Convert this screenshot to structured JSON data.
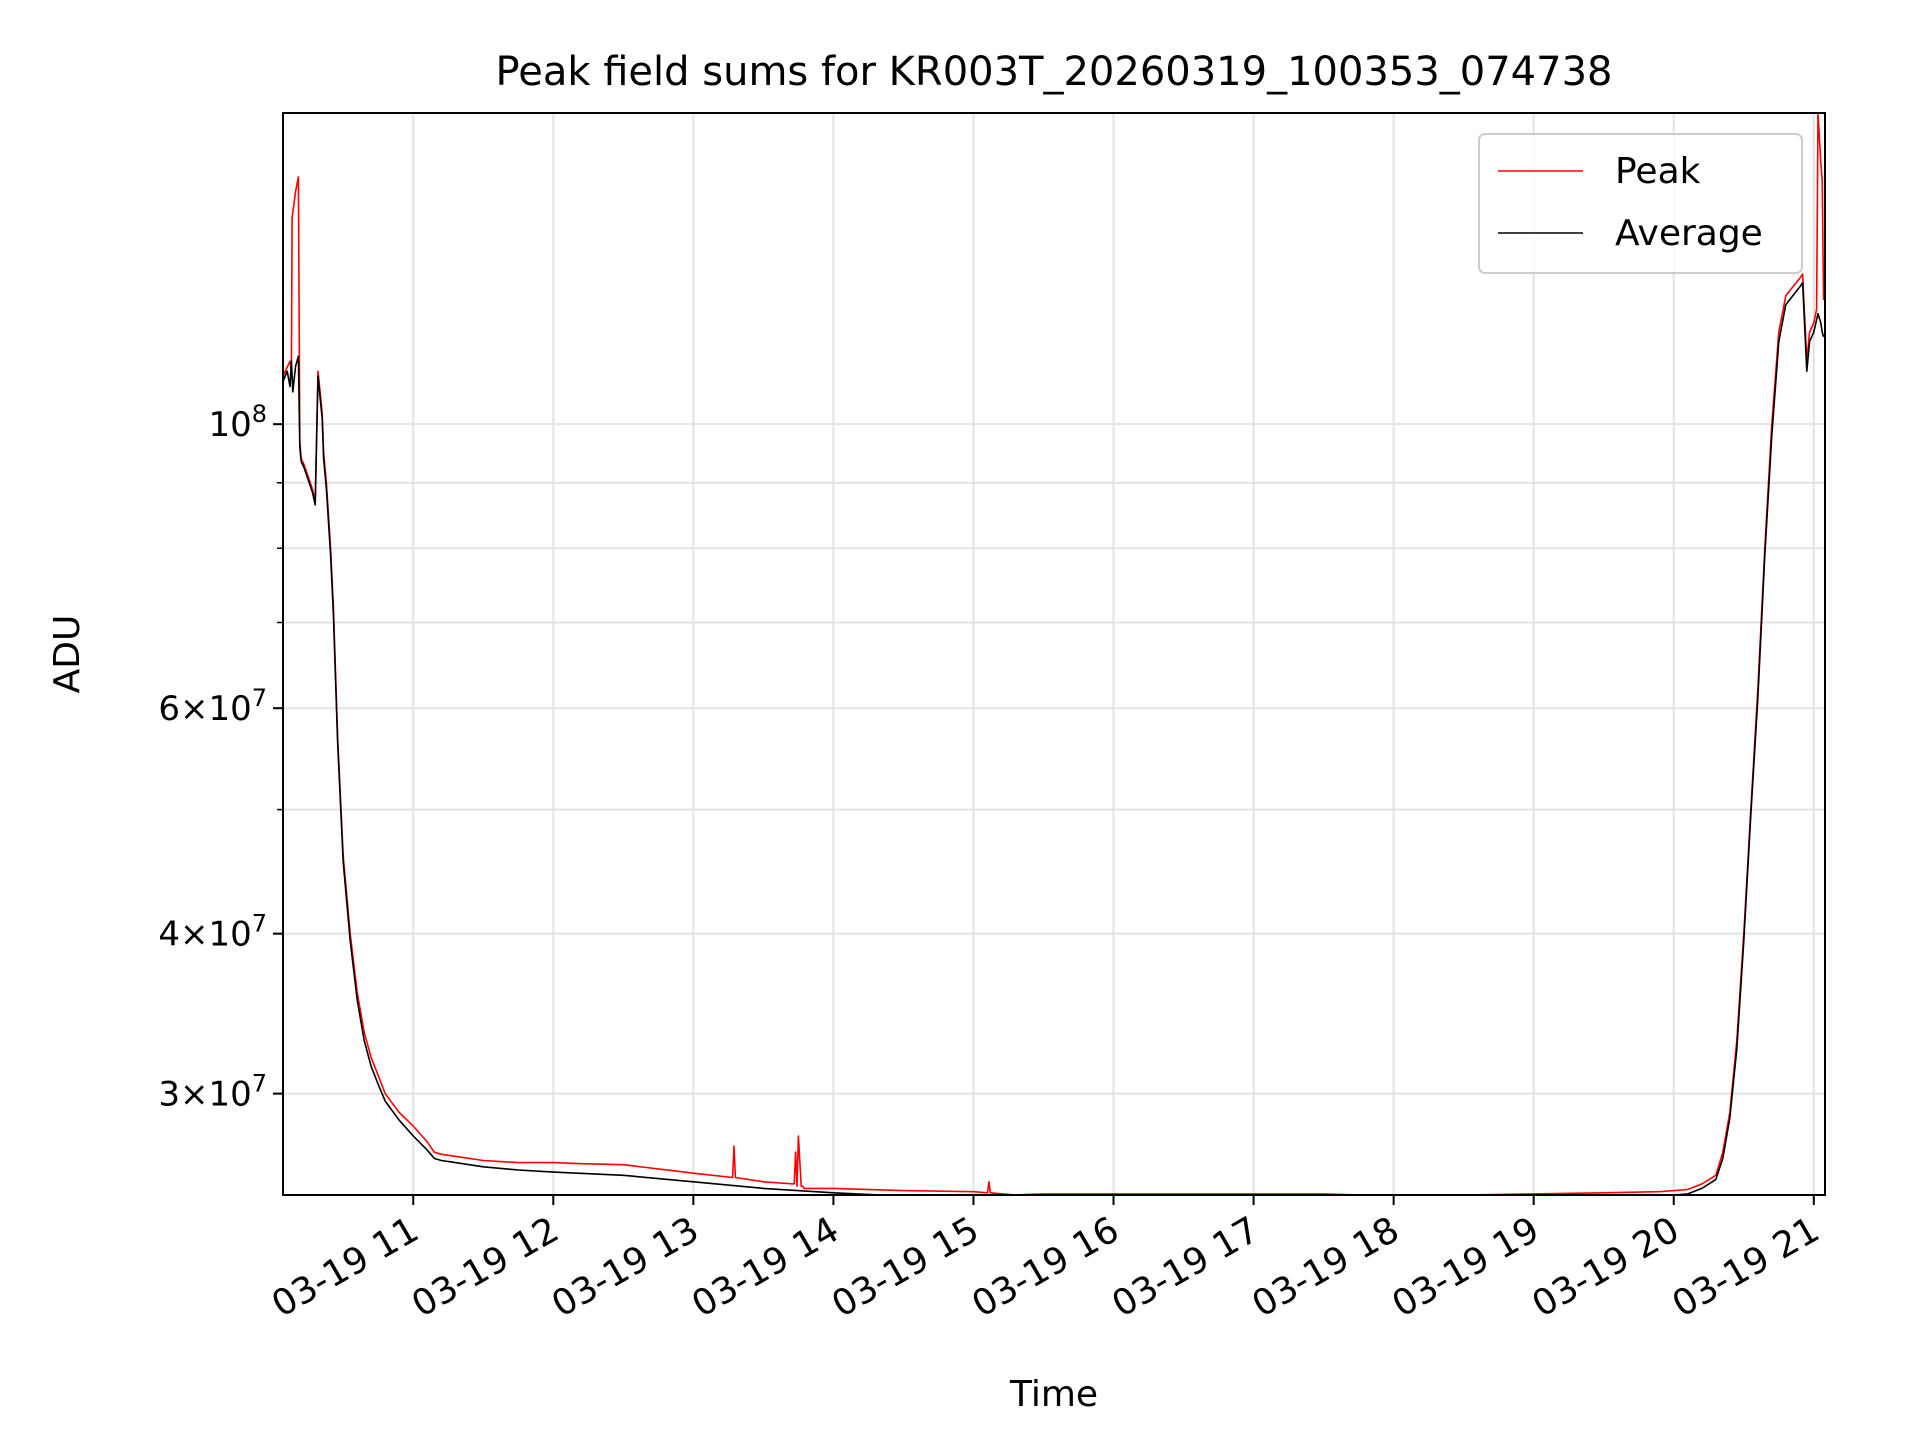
{
  "chart_data": {
    "type": "line",
    "title": "Peak field sums for KR003T_20260319_100353_074738",
    "xlabel": "Time",
    "ylabel": "ADU",
    "x_axis": "time (hours on 2026-03-19)",
    "xlim": [
      10.07,
      21.08
    ],
    "y_scale": "log",
    "ylim": [
      25000000.0,
      175000000.0
    ],
    "grid": true,
    "legend_position": "upper right",
    "x_ticks": [
      {
        "value": 11,
        "label": "03-19 11"
      },
      {
        "value": 12,
        "label": "03-19 12"
      },
      {
        "value": 13,
        "label": "03-19 13"
      },
      {
        "value": 14,
        "label": "03-19 14"
      },
      {
        "value": 15,
        "label": "03-19 15"
      },
      {
        "value": 16,
        "label": "03-19 16"
      },
      {
        "value": 17,
        "label": "03-19 17"
      },
      {
        "value": 18,
        "label": "03-19 18"
      },
      {
        "value": 19,
        "label": "03-19 19"
      },
      {
        "value": 20,
        "label": "03-19 20"
      },
      {
        "value": 21,
        "label": "03-19 21"
      }
    ],
    "y_ticks": [
      {
        "value": 30000000,
        "mantissa": "3",
        "exp": "7"
      },
      {
        "value": 40000000,
        "mantissa": "4",
        "exp": "7"
      },
      {
        "value": 60000000,
        "mantissa": "6",
        "exp": "7"
      },
      {
        "value": 100000000,
        "mantissa": "",
        "exp": "8"
      }
    ],
    "y_minor_ticks": [
      50000000,
      70000000,
      80000000,
      90000000
    ],
    "series": [
      {
        "name": "Peak",
        "color": "#ff0000",
        "x": [
          10.07,
          10.12,
          10.13,
          10.135,
          10.16,
          10.18,
          10.19,
          10.2,
          10.22,
          10.25,
          10.28,
          10.3,
          10.32,
          10.35,
          10.36,
          10.38,
          10.41,
          10.43,
          10.46,
          10.5,
          10.55,
          10.6,
          10.65,
          10.7,
          10.75,
          10.8,
          10.9,
          11.0,
          11.1,
          11.15,
          11.2,
          11.3,
          11.5,
          11.75,
          12.0,
          12.2,
          12.5,
          13.0,
          13.28,
          13.29,
          13.3,
          13.5,
          13.72,
          13.73,
          13.74,
          13.75,
          13.77,
          13.78,
          13.79,
          14.0,
          14.5,
          15.0,
          15.1,
          15.11,
          15.12,
          15.3,
          15.5,
          16.0,
          16.5,
          17.0,
          17.5,
          18.0,
          18.5,
          19.0,
          19.5,
          19.9,
          20.1,
          20.2,
          20.3,
          20.35,
          20.4,
          20.45,
          20.5,
          20.55,
          20.6,
          20.65,
          20.7,
          20.75,
          20.8,
          20.85,
          20.9,
          20.92,
          20.95,
          20.96,
          20.97,
          21.0,
          21.02,
          21.03,
          21.05,
          21.06,
          21.07
        ],
        "y": [
          109000000,
          112000000,
          110000000,
          145000000,
          152000000,
          156000000,
          97000000,
          94000000,
          93000000,
          91000000,
          89000000,
          87000000,
          110000000,
          102000000,
          95000000,
          90000000,
          80000000,
          72000000,
          57000000,
          46000000,
          40000000,
          36000000,
          33500000,
          32000000,
          31000000,
          30000000,
          29000000,
          28300000,
          27500000,
          27000000,
          26900000,
          26800000,
          26600000,
          26500000,
          26500000,
          26450000,
          26400000,
          26000000,
          25800000,
          27300000,
          25800000,
          25600000,
          25500000,
          27000000,
          25400000,
          27800000,
          25400000,
          25400000,
          25300000,
          25300000,
          25200000,
          25150000,
          25100000,
          25600000,
          25100000,
          25000000,
          25050000,
          25050000,
          25050000,
          25050000,
          25050000,
          24950000,
          25000000,
          25050000,
          25100000,
          25150000,
          25250000,
          25500000,
          25900000,
          27000000,
          29000000,
          33000000,
          40000000,
          50000000,
          62000000,
          80000000,
          100000000,
          118000000,
          126000000,
          128000000,
          130000000,
          131000000,
          112000000,
          115000000,
          118000000,
          120000000,
          123000000,
          175000000,
          160000000,
          155000000,
          125000000
        ]
      },
      {
        "name": "Average",
        "color": "#000000",
        "x": [
          10.07,
          10.1,
          10.12,
          10.13,
          10.14,
          10.16,
          10.18,
          10.19,
          10.2,
          10.22,
          10.25,
          10.28,
          10.3,
          10.32,
          10.35,
          10.36,
          10.38,
          10.41,
          10.43,
          10.46,
          10.5,
          10.55,
          10.6,
          10.65,
          10.7,
          10.75,
          10.8,
          10.9,
          11.0,
          11.1,
          11.15,
          11.2,
          11.3,
          11.5,
          11.75,
          12.0,
          12.5,
          13.0,
          13.5,
          14.0,
          14.5,
          15.0,
          15.3,
          15.5,
          16.0,
          16.5,
          17.0,
          17.5,
          18.0,
          18.5,
          19.0,
          19.5,
          19.9,
          20.1,
          20.2,
          20.3,
          20.35,
          20.4,
          20.45,
          20.5,
          20.55,
          20.6,
          20.65,
          20.7,
          20.75,
          20.8,
          20.85,
          20.9,
          20.92,
          20.95,
          20.96,
          20.97,
          21.0,
          21.03,
          21.05,
          21.06,
          21.07
        ],
        "y": [
          108000000,
          110000000,
          107000000,
          112000000,
          106000000,
          111000000,
          113000000,
          96000000,
          93500000,
          92500000,
          90500000,
          88500000,
          86500000,
          109000000,
          101000000,
          94000000,
          89000000,
          79000000,
          71000000,
          56500000,
          45500000,
          39500000,
          35500000,
          33000000,
          31500000,
          30500000,
          29600000,
          28600000,
          27800000,
          27100000,
          26700000,
          26600000,
          26500000,
          26300000,
          26150000,
          26050000,
          25900000,
          25600000,
          25300000,
          25100000,
          24950000,
          24900000,
          24800000,
          24850000,
          24850000,
          24850000,
          24850000,
          24800000,
          24750000,
          24800000,
          24850000,
          24900000,
          24950000,
          25050000,
          25300000,
          25700000,
          26700000,
          28700000,
          32500000,
          39500000,
          49500000,
          61000000,
          79000000,
          98000000,
          116000000,
          124000000,
          126000000,
          128000000,
          129000000,
          110000000,
          113000000,
          116000000,
          118000000,
          122000000,
          120000000,
          118000000,
          117000000
        ]
      }
    ]
  }
}
